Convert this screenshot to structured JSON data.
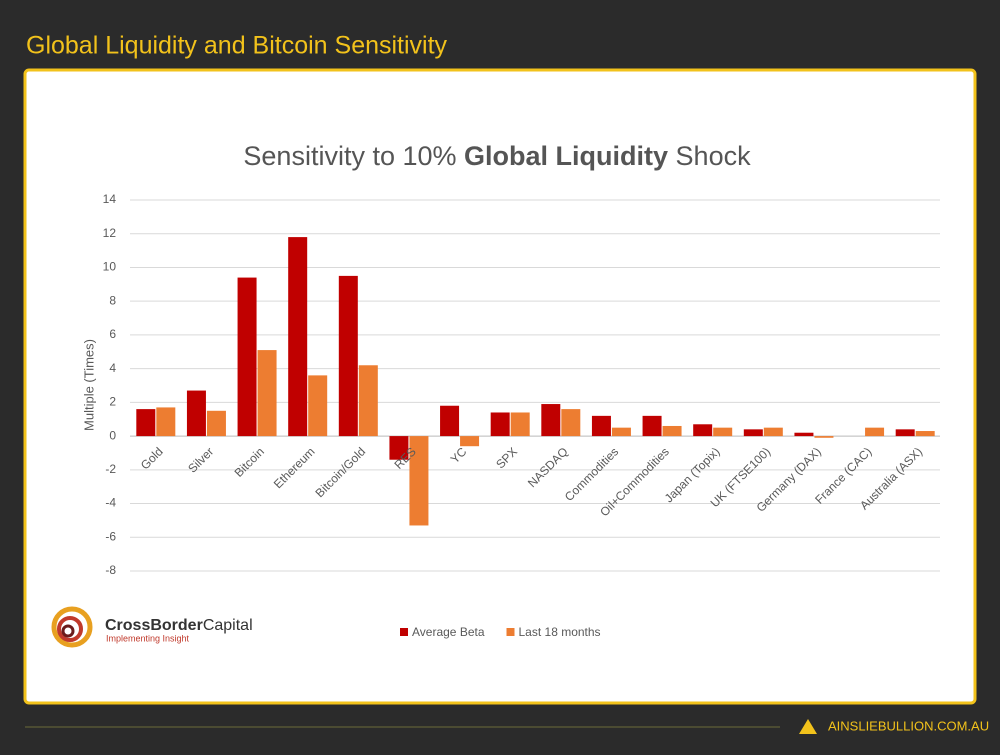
{
  "header": {
    "title": "Global Liquidity and Bitcoin Sensitivity"
  },
  "chart_data": {
    "type": "bar",
    "title": {
      "prefix": "Sensitivity to 10%",
      "emphasis": "Global Liquidity",
      "suffix": "Shock"
    },
    "y_label": "Multiple (Times)",
    "categories": [
      "Gold",
      "Silver",
      "Bitcoin",
      "Ethereum",
      "Bitcoin/Gold",
      "RES",
      "YC",
      "SPX",
      "NASDAQ",
      "Commodities",
      "Oil+Commodities",
      "Japan (Topix)",
      "UK (FTSE100)",
      "Germany (DAX)",
      "France (CAC)",
      "Australia (ASX)"
    ],
    "series": [
      {
        "name": "Average Beta",
        "color": "#c00000",
        "values": [
          1.6,
          2.7,
          9.4,
          11.8,
          9.5,
          -1.4,
          1.8,
          1.4,
          1.9,
          1.2,
          1.2,
          0.7,
          0.4,
          0.2,
          0,
          0.4
        ]
      },
      {
        "name": "Last 18 months",
        "color": "#ed7d31",
        "values": [
          1.7,
          1.5,
          5.1,
          3.6,
          4.2,
          -5.3,
          -0.6,
          1.4,
          1.6,
          0.5,
          0.6,
          0.5,
          0.5,
          -0.1,
          0.5,
          0.3
        ]
      }
    ],
    "ylim": [
      -8,
      14
    ],
    "yticks": [
      -8,
      -6,
      -4,
      -2,
      0,
      2,
      4,
      6,
      8,
      10,
      12,
      14
    ],
    "grid": true,
    "legend": "bottom"
  },
  "logo": {
    "name_bold": "CrossBorder",
    "name_light": "Capital",
    "tagline": "Implementing Insight"
  },
  "footer": {
    "site": "AINSLIEBULLION.COM.AU"
  }
}
